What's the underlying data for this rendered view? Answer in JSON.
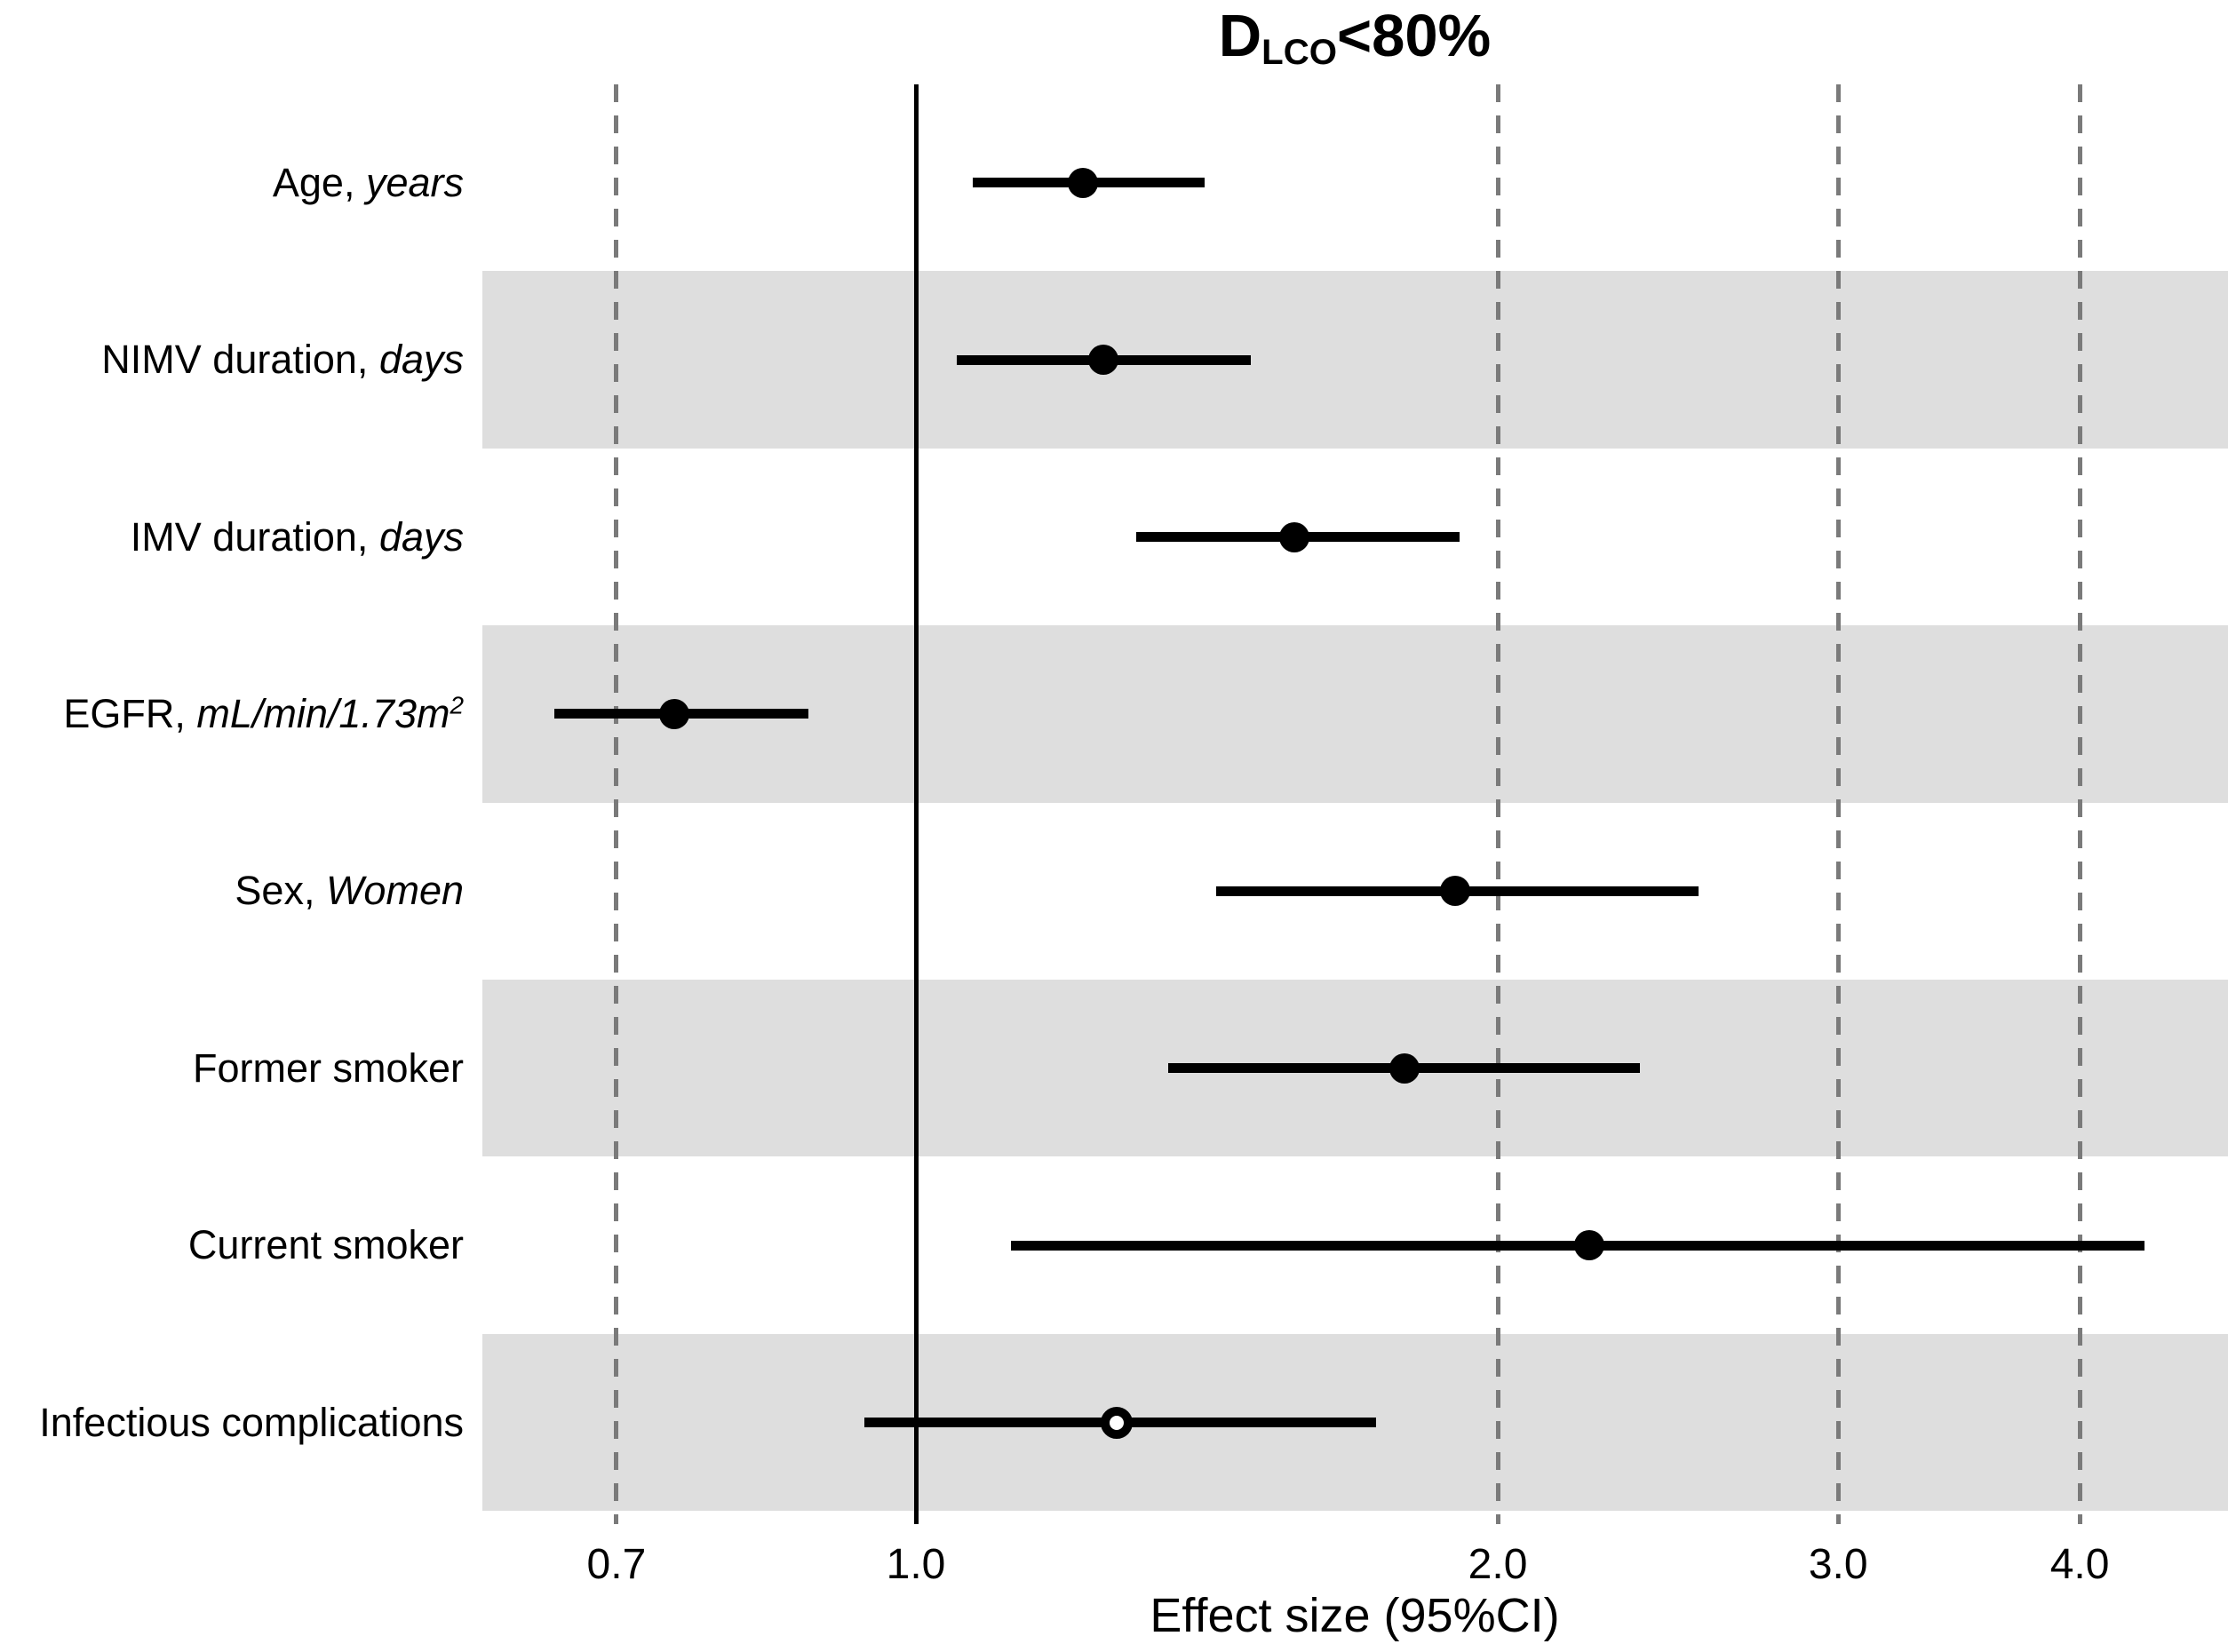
{
  "chart_data": {
    "type": "scatter",
    "subtype": "forest-plot",
    "title": {
      "main": "D",
      "subscript": "LCO",
      "rest": "<80%"
    },
    "xlabel": "Effect size (95%CI)",
    "x_scale": "log",
    "x_range_visible": [
      0.6,
      4.77
    ],
    "reference_value": 1.0,
    "grid": "dashed-vertical",
    "x_ticks": [
      {
        "value": 0.7,
        "label": "0.7",
        "grid": "dashed"
      },
      {
        "value": 1.0,
        "label": "1.0",
        "grid": "solid"
      },
      {
        "value": 2.0,
        "label": "2.0",
        "grid": "dashed"
      },
      {
        "value": 3.0,
        "label": "3.0",
        "grid": "dashed"
      },
      {
        "value": 4.0,
        "label": "4.0",
        "grid": "dashed"
      }
    ],
    "rows": [
      {
        "label_parts": [
          {
            "text": "Age, ",
            "italic": false
          },
          {
            "text": "years",
            "italic": true
          }
        ],
        "estimate": 1.22,
        "ci_low": 1.07,
        "ci_high": 1.41,
        "marker": "filled",
        "shaded": false
      },
      {
        "label_parts": [
          {
            "text": "NIMV duration, ",
            "italic": false
          },
          {
            "text": "days",
            "italic": true
          }
        ],
        "estimate": 1.25,
        "ci_low": 1.05,
        "ci_high": 1.49,
        "marker": "filled",
        "shaded": true
      },
      {
        "label_parts": [
          {
            "text": "IMV duration, ",
            "italic": false
          },
          {
            "text": "days",
            "italic": true
          }
        ],
        "estimate": 1.57,
        "ci_low": 1.3,
        "ci_high": 1.91,
        "marker": "filled",
        "shaded": false
      },
      {
        "label_parts": [
          {
            "text": "EGFR, ",
            "italic": false
          },
          {
            "text": "mL/min/1.73m",
            "italic": true
          },
          {
            "text": "2",
            "italic": true,
            "superscript": true
          }
        ],
        "estimate": 0.75,
        "ci_low": 0.65,
        "ci_high": 0.88,
        "marker": "filled",
        "shaded": true
      },
      {
        "label_parts": [
          {
            "text": "Sex, ",
            "italic": false
          },
          {
            "text": "Women",
            "italic": true
          }
        ],
        "estimate": 1.9,
        "ci_low": 1.43,
        "ci_high": 2.54,
        "marker": "filled",
        "shaded": false
      },
      {
        "label_parts": [
          {
            "text": "Former smoker",
            "italic": false
          }
        ],
        "estimate": 1.79,
        "ci_low": 1.35,
        "ci_high": 2.37,
        "marker": "filled",
        "shaded": true
      },
      {
        "label_parts": [
          {
            "text": "Current smoker",
            "italic": false
          }
        ],
        "estimate": 2.23,
        "ci_low": 1.12,
        "ci_high": 4.32,
        "marker": "filled",
        "shaded": false
      },
      {
        "label_parts": [
          {
            "text": "Infectious complications",
            "italic": false
          }
        ],
        "estimate": 1.27,
        "ci_low": 0.94,
        "ci_high": 1.73,
        "marker": "open",
        "shaded": true
      }
    ],
    "colors": {
      "marker": "#000000",
      "ci_line": "#000000",
      "shaded_band": "#dedede",
      "grid_dashed": "#7a7a7a",
      "reference_line": "#000000",
      "text": "#000000",
      "background": "#ffffff"
    },
    "legend": "none",
    "marker_note": "open marker = confidence interval crosses 1.0"
  }
}
